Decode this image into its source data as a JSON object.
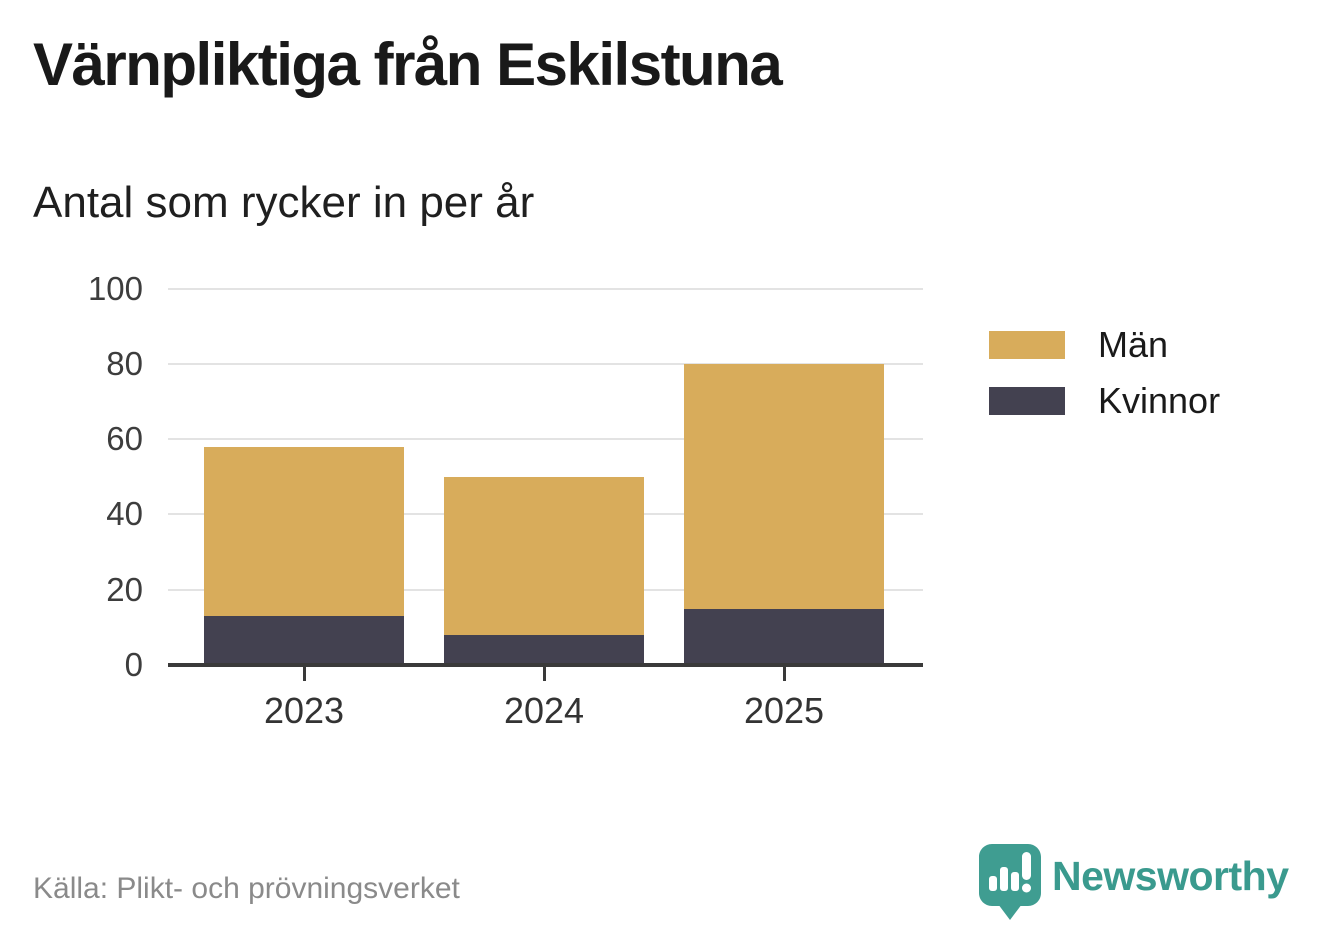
{
  "title": "Värnpliktiga från Eskilstuna",
  "subtitle": "Antal som rycker in per år",
  "source": "Källa: Plikt- och prövningsverket",
  "brand": {
    "name": "Newsworthy",
    "color": "#3a9a8e",
    "icon": "newsworthy-speech-bubble-bar-chart-icon",
    "icon_color": "#3f9d91"
  },
  "colors": {
    "men": "#d8ac5b",
    "women": "#434150",
    "gridline": "#e3e3e3",
    "axis": "#3a3a3a",
    "tick_label": "#3d3d3d",
    "title_text": "#191919",
    "source_text": "#8a8a8a"
  },
  "chart_data": {
    "type": "bar",
    "stacked": true,
    "title": "Värnpliktiga från Eskilstuna",
    "subtitle": "Antal som rycker in per år",
    "categories": [
      "2023",
      "2024",
      "2025"
    ],
    "series": [
      {
        "name": "Män",
        "color": "#d8ac5b",
        "values": [
          45,
          42,
          65
        ]
      },
      {
        "name": "Kvinnor",
        "color": "#434150",
        "values": [
          13,
          8,
          15
        ]
      }
    ],
    "stack_order_bottom_to_top": [
      "Kvinnor",
      "Män"
    ],
    "totals": [
      58,
      50,
      80
    ],
    "xlabel": "",
    "ylabel": "",
    "ylim": [
      0,
      100
    ],
    "yticks": [
      0,
      20,
      40,
      60,
      80,
      100
    ],
    "grid": true,
    "legend_position": "right"
  }
}
